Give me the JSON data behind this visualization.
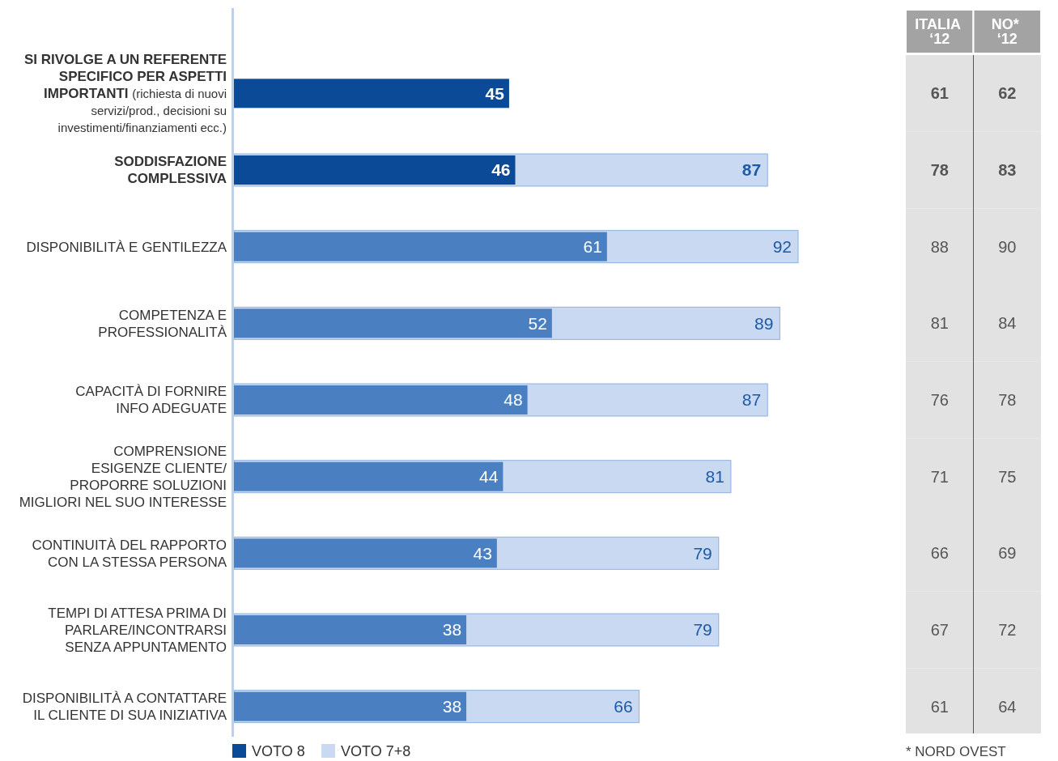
{
  "chart_data": [
    {
      "type": "bar",
      "orientation": "horizontal",
      "stacked": false,
      "legend": "bottom left",
      "categories": [
        "SI RIVOLGE A UN REFERENTE\nSPECIFICO PER ASPETTI\nIMPORTANTI (richiesta di nuovi\nservizi/prod., decisioni su\ninvestimenti/finanziamenti ecc.)",
        "SODDISFAZIONE\nCOMPLESSIVA",
        "DISPONIBILITÀ E GENTILEZZA",
        "COMPETENZA E\nPROFESSIONALITÀ",
        "CAPACITÀ DI FORNIRE\nINFO ADEGUATE",
        "COMPRENSIONE\nESIGENZE CLIENTE/\nPROPORRE SOLUZIONI\nMIGLIORI NEL SUO INTERESSE",
        "CONTINUITÀ DEL RAPPORTO\nCON LA STESSA PERSONA",
        "TEMPI DI ATTESA PRIMA DI\nPARLARE/INCONTRARSI\nSENZA APPUNTAMENTO",
        "DISPONIBILITÀ A CONTATTARE\nIL CLIENTE DI SUA INIZIATIVA"
      ],
      "data_labels": true,
      "series": [
        {
          "name": "VOTO 8",
          "color": "#0b4a97",
          "colors": [
            "#0b4a97",
            "#0b4a97",
            "#4a80c2",
            "#4a80c2",
            "#4a80c2",
            "#4a80c2",
            "#4a80c2",
            "#4a80c2",
            "#4a80c2"
          ],
          "values": [
            45,
            46,
            61,
            52,
            48,
            44,
            43,
            38,
            38
          ]
        },
        {
          "name": "VOTO 7+8",
          "color": "#c9d9f1",
          "values": [
            null,
            87,
            92,
            89,
            87,
            81,
            79,
            79,
            66
          ]
        }
      ]
    },
    {
      "type": "other",
      "categories": [
        "ITALIA ‘12",
        "NO* ‘12"
      ],
      "data_labels": true,
      "series": [
        {
          "values": [
            61,
            62
          ]
        },
        {
          "values": [
            78,
            83
          ]
        },
        {
          "values": [
            88,
            90
          ]
        },
        {
          "values": [
            81,
            84
          ]
        },
        {
          "values": [
            76,
            78
          ]
        },
        {
          "values": [
            71,
            75
          ]
        },
        {
          "values": [
            66,
            69
          ]
        },
        {
          "values": [
            67,
            72
          ]
        },
        {
          "values": [
            61,
            64
          ]
        }
      ],
      "annotations": [
        "* NORD OVEST"
      ]
    }
  ]
}
